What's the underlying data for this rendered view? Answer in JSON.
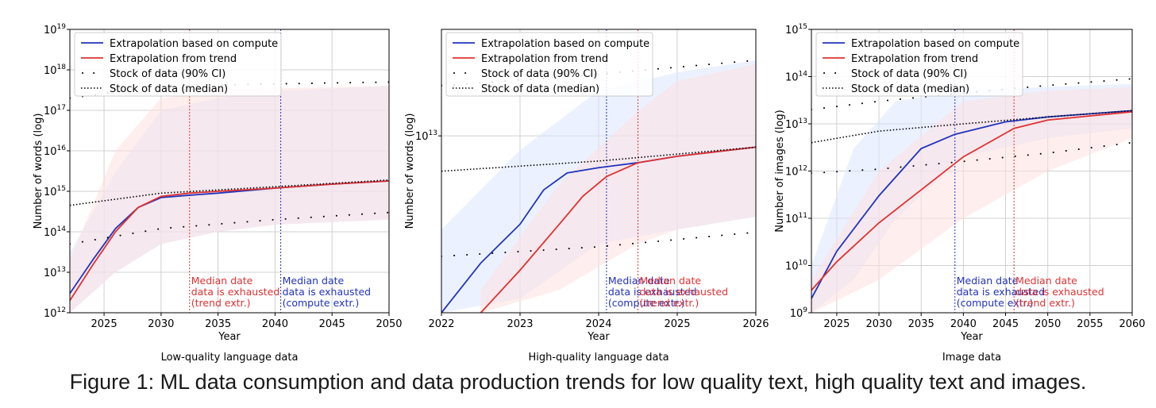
{
  "caption": "Figure 1: ML data consumption and data production trends for low quality text, high quality text and images.",
  "colors": {
    "compute": "#2233bb",
    "trend": "#dd3333",
    "stock": "#000000",
    "compute_band": "#dce6ff",
    "trend_band": "#fde0e0"
  },
  "chart_data": [
    {
      "type": "line",
      "title": "Low-quality language data",
      "xlabel": "Year",
      "ylabel": "Number of words (log)",
      "xlim": [
        2022,
        2050
      ],
      "ylim": [
        1000000000000.0,
        1e+19
      ],
      "yscale": "log",
      "grid": true,
      "legend": "top-left",
      "xticks": [
        2025,
        2030,
        2035,
        2040,
        2045,
        2050
      ],
      "xtick_labels": [
        "2025",
        "2030",
        "2035",
        "2040",
        "2045",
        "2050"
      ],
      "yticks": [
        1000000000000.0,
        10000000000000.0,
        100000000000000.0,
        1000000000000000.0,
        1e+16,
        1e+17,
        1e+18,
        1e+19
      ],
      "ytick_labels": [
        {
          "base": "10",
          "exp": "12"
        },
        {
          "base": "10",
          "exp": "13"
        },
        {
          "base": "10",
          "exp": "14"
        },
        {
          "base": "10",
          "exp": "15"
        },
        {
          "base": "10",
          "exp": "16"
        },
        {
          "base": "10",
          "exp": "17"
        },
        {
          "base": "10",
          "exp": "18"
        },
        {
          "base": "10",
          "exp": "19"
        }
      ],
      "series": [
        {
          "name": "Extrapolation based on compute",
          "color": "#2233bb",
          "style": "solid",
          "x": [
            2022,
            2024,
            2026,
            2028,
            2030,
            2032.5,
            2035,
            2040,
            2045,
            2050
          ],
          "y": [
            3000000000000.0,
            20000000000000.0,
            120000000000000.0,
            400000000000000.0,
            700000000000000.0,
            800000000000000.0,
            900000000000000.0,
            1200000000000000.0,
            1500000000000000.0,
            1800000000000000.0
          ]
        },
        {
          "name": "Extrapolation from trend",
          "color": "#dd3333",
          "style": "solid",
          "x": [
            2022,
            2024,
            2026,
            2028,
            2030,
            2032.5,
            2035,
            2040,
            2045,
            2050
          ],
          "y": [
            2000000000000.0,
            15000000000000.0,
            100000000000000.0,
            400000000000000.0,
            750000000000000.0,
            900000000000000.0,
            1000000000000000.0,
            1200000000000000.0,
            1500000000000000.0,
            1800000000000000.0
          ]
        },
        {
          "name": "Stock of data (90% CI)",
          "color": "#000000",
          "style": "dots",
          "x": [
            2022,
            2030,
            2040,
            2050
          ],
          "y": [
            50000000000000.0,
            120000000000000.0,
            200000000000000.0,
            300000000000000.0
          ],
          "x2": [
            2022,
            2030,
            2040,
            2050
          ],
          "y2": [
            2e+17,
            4e+17,
            4.5e+17,
            5e+17
          ]
        },
        {
          "name": "Stock of data (median)",
          "color": "#000000",
          "style": "dotted",
          "x": [
            2022,
            2030,
            2040,
            2050
          ],
          "y": [
            450000000000000.0,
            900000000000000.0,
            1300000000000000.0,
            1900000000000000.0
          ]
        }
      ],
      "compute_band": {
        "x": [
          2022,
          2026,
          2030,
          2035,
          2040,
          2050
        ],
        "low": [
          1000000000000.0,
          10000000000000.0,
          50000000000000.0,
          100000000000000.0,
          150000000000000.0,
          200000000000000.0
        ],
        "high": [
          30000000000000.0,
          3000000000000000.0,
          1e+17,
          2e+17,
          3e+17,
          4e+17
        ]
      },
      "trend_band": {
        "x": [
          2022,
          2026,
          2030,
          2035,
          2040,
          2050
        ],
        "low": [
          1000000000000.0,
          10000000000000.0,
          50000000000000.0,
          100000000000000.0,
          150000000000000.0,
          200000000000000.0
        ],
        "high": [
          20000000000000.0,
          1e+16,
          2e+17,
          3e+17,
          3.5e+17,
          4e+17
        ]
      },
      "vlines": [
        {
          "x": 2032.5,
          "color": "#dd3333",
          "label": [
            "Median date",
            "data is exhausted",
            "(trend extr.)"
          ]
        },
        {
          "x": 2040.5,
          "color": "#2233bb",
          "label": [
            "Median date",
            "data is exhausted",
            "(compute extr.)"
          ]
        }
      ]
    },
    {
      "type": "line",
      "title": "High-quality language data",
      "xlabel": "Year",
      "ylabel": "Number of words (log)",
      "xlim": [
        2022,
        2026
      ],
      "ylim": [
        2700000000000.0,
        22000000000000.0
      ],
      "yscale": "log",
      "grid": true,
      "legend": "top-left",
      "xticks": [
        2022,
        2023,
        2024,
        2025,
        2026
      ],
      "xtick_labels": [
        "2022",
        "2023",
        "2024",
        "2025",
        "2026"
      ],
      "yticks": [
        10000000000000.0
      ],
      "ytick_labels": [
        {
          "base": "10",
          "exp": "13"
        }
      ],
      "series": [
        {
          "name": "Extrapolation based on compute",
          "color": "#2233bb",
          "style": "solid",
          "x": [
            2022,
            2022.5,
            2023,
            2023.3,
            2023.6,
            2024,
            2024.5,
            2025,
            2026
          ],
          "y": [
            2700000000000.0,
            3900000000000.0,
            5200000000000.0,
            6700000000000.0,
            7600000000000.0,
            7900000000000.0,
            8200000000000.0,
            8600000000000.0,
            9200000000000.0
          ]
        },
        {
          "name": "Extrapolation from trend",
          "color": "#dd3333",
          "style": "solid",
          "x": [
            2022.5,
            2023,
            2023.5,
            2023.8,
            2024.1,
            2024.5,
            2025,
            2026
          ],
          "y": [
            2700000000000.0,
            3700000000000.0,
            5200000000000.0,
            6400000000000.0,
            7400000000000.0,
            8200000000000.0,
            8600000000000.0,
            9200000000000.0
          ]
        },
        {
          "name": "Stock of data (90% CI)",
          "color": "#000000",
          "style": "dots",
          "x": [
            2022,
            2024,
            2026
          ],
          "y": [
            4100000000000.0,
            4400000000000.0,
            4900000000000.0
          ],
          "x2": [
            2022,
            2024,
            2026
          ],
          "y2": [
            14500000000000.0,
            15800000000000.0,
            17500000000000.0
          ]
        },
        {
          "name": "Stock of data (median)",
          "color": "#000000",
          "style": "dotted",
          "x": [
            2022,
            2024,
            2026
          ],
          "y": [
            7700000000000.0,
            8300000000000.0,
            9200000000000.0
          ]
        }
      ],
      "compute_band": {
        "x": [
          2022,
          2023,
          2024,
          2025,
          2026
        ],
        "low": [
          2700000000000.0,
          3000000000000.0,
          4500000000000.0,
          5000000000000.0,
          5500000000000.0
        ],
        "high": [
          5000000000000.0,
          9000000000000.0,
          14000000000000.0,
          16000000000000.0,
          17500000000000.0
        ]
      },
      "trend_band": {
        "x": [
          2022.5,
          2023.5,
          2024.5,
          2025,
          2026
        ],
        "low": [
          2700000000000.0,
          3200000000000.0,
          4500000000000.0,
          5000000000000.0,
          5500000000000.0
        ],
        "high": [
          3200000000000.0,
          7000000000000.0,
          12000000000000.0,
          15000000000000.0,
          17000000000000.0
        ]
      },
      "vlines": [
        {
          "x": 2024.1,
          "color": "#2233bb",
          "label": [
            "Median date",
            "data is exhausted",
            "(compute extr.)"
          ]
        },
        {
          "x": 2024.5,
          "color": "#dd3333",
          "label": [
            "Median date",
            "data is exhausted",
            "(trend extr.)"
          ]
        }
      ]
    },
    {
      "type": "line",
      "title": "Image data",
      "xlabel": "Year",
      "ylabel": "Number of images (log)",
      "xlim": [
        2022,
        2060
      ],
      "ylim": [
        1000000000.0,
        1000000000000000.0
      ],
      "yscale": "log",
      "grid": true,
      "legend": "top-left",
      "xticks": [
        2025,
        2030,
        2035,
        2040,
        2045,
        2050,
        2055,
        2060
      ],
      "xtick_labels": [
        "2025",
        "2030",
        "2035",
        "2040",
        "2045",
        "2050",
        "2055",
        "2060"
      ],
      "yticks": [
        1000000000.0,
        10000000000.0,
        100000000000.0,
        1000000000000.0,
        10000000000000.0,
        100000000000000.0,
        1000000000000000.0
      ],
      "ytick_labels": [
        {
          "base": "10",
          "exp": "9"
        },
        {
          "base": "10",
          "exp": "10"
        },
        {
          "base": "10",
          "exp": "11"
        },
        {
          "base": "10",
          "exp": "12"
        },
        {
          "base": "10",
          "exp": "13"
        },
        {
          "base": "10",
          "exp": "14"
        },
        {
          "base": "10",
          "exp": "15"
        }
      ],
      "series": [
        {
          "name": "Extrapolation based on compute",
          "color": "#2233bb",
          "style": "solid",
          "x": [
            2022,
            2025,
            2030,
            2035,
            2039,
            2045,
            2050,
            2060
          ],
          "y": [
            2000000000.0,
            20000000000.0,
            300000000000.0,
            3000000000000.0,
            6000000000000.0,
            11000000000000.0,
            14000000000000.0,
            19000000000000.0
          ]
        },
        {
          "name": "Extrapolation from trend",
          "color": "#dd3333",
          "style": "solid",
          "x": [
            2022,
            2025,
            2030,
            2035,
            2040,
            2046,
            2050,
            2060
          ],
          "y": [
            3000000000.0,
            12000000000.0,
            80000000000.0,
            400000000000.0,
            2000000000000.0,
            8000000000000.0,
            12000000000000.0,
            18000000000000.0
          ]
        },
        {
          "name": "Stock of data (90% CI)",
          "color": "#000000",
          "style": "dots",
          "x": [
            2022,
            2030,
            2040,
            2050,
            2060
          ],
          "y": [
            900000000000.0,
            1100000000000.0,
            1600000000000.0,
            2400000000000.0,
            4000000000000.0
          ],
          "x2": [
            2022,
            2030,
            2040,
            2050,
            2060
          ],
          "y2": [
            20000000000000.0,
            30000000000000.0,
            45000000000000.0,
            65000000000000.0,
            90000000000000.0
          ]
        },
        {
          "name": "Stock of data (median)",
          "color": "#000000",
          "style": "dotted",
          "x": [
            2022,
            2030,
            2040,
            2050,
            2060
          ],
          "y": [
            4000000000000.0,
            7000000000000.0,
            10000000000000.0,
            14000000000000.0,
            19000000000000.0
          ]
        }
      ],
      "compute_band": {
        "x": [
          2022,
          2027,
          2032,
          2040,
          2050,
          2060
        ],
        "low": [
          1000000000.0,
          5000000000.0,
          100000000000.0,
          2000000000000.0,
          5000000000000.0,
          8000000000000.0
        ],
        "high": [
          10000000000.0,
          3000000000000.0,
          30000000000000.0,
          50000000000000.0,
          60000000000000.0,
          70000000000000.0
        ]
      },
      "trend_band": {
        "x": [
          2022,
          2030,
          2040,
          2050,
          2060
        ],
        "low": [
          1000000000.0,
          5000000000.0,
          100000000000.0,
          1000000000000.0,
          5000000000000.0
        ],
        "high": [
          5000000000.0,
          1000000000000.0,
          30000000000000.0,
          50000000000000.0,
          60000000000000.0
        ]
      },
      "vlines": [
        {
          "x": 2039,
          "color": "#2233bb",
          "label": [
            "Median date",
            "data is exhausted",
            "(compute extr.)"
          ]
        },
        {
          "x": 2046,
          "color": "#dd3333",
          "label": [
            "Median date",
            "data is exhausted",
            "(trend extr.)"
          ]
        }
      ]
    }
  ]
}
